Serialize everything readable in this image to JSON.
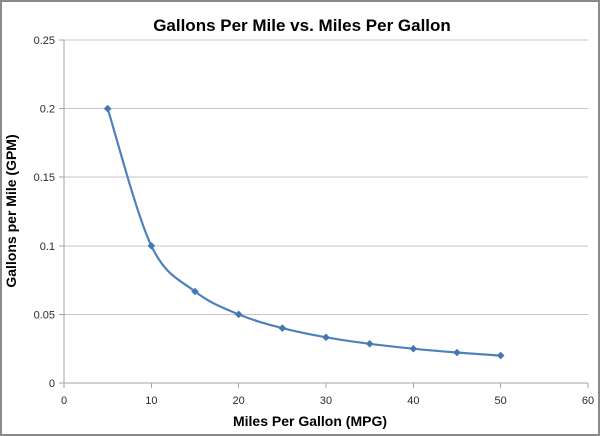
{
  "window": {
    "background": "#ffffff",
    "border_color": "#8a8a8a"
  },
  "chart_data": {
    "type": "line",
    "title": "Gallons Per Mile vs. Miles Per Gallon",
    "xlabel": "Miles Per Gallon (MPG)",
    "ylabel": "Gallons per Mile (GPM)",
    "x": [
      5,
      10,
      15,
      20,
      25,
      30,
      35,
      40,
      45,
      50
    ],
    "y": [
      0.2,
      0.1,
      0.0667,
      0.05,
      0.04,
      0.0333,
      0.0286,
      0.025,
      0.0222,
      0.02
    ],
    "xlim": [
      0,
      60
    ],
    "ylim": [
      0,
      0.25
    ],
    "xticks": [
      0,
      10,
      20,
      30,
      40,
      50,
      60
    ],
    "xtick_labels": [
      "0",
      "10",
      "20",
      "30",
      "40",
      "50",
      "60"
    ],
    "yticks": [
      0,
      0.05,
      0.1,
      0.15,
      0.2,
      0.25
    ],
    "ytick_labels": [
      "0",
      "0.05",
      "0.1",
      "0.15",
      "0.2",
      "0.25"
    ],
    "grid": "horizontal",
    "legend": "none",
    "line_color": "#4f81bd",
    "marker": "diamond",
    "marker_color": "#4676b1",
    "smooth": true
  }
}
